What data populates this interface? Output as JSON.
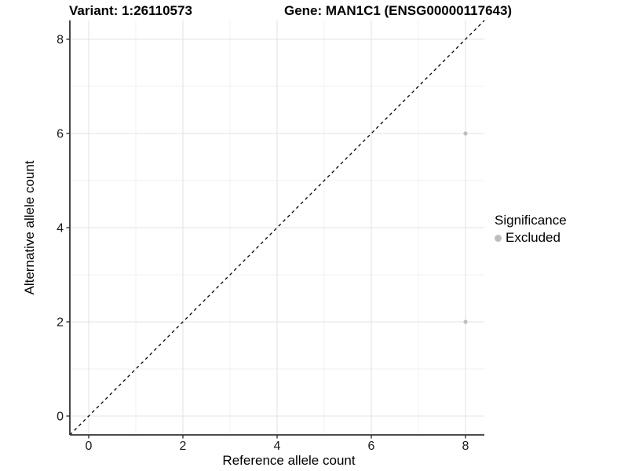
{
  "chart_data": {
    "type": "scatter",
    "title_left": "Variant: 1:26110573",
    "title_right": "Gene: MAN1C1 (ENSG00000117643)",
    "xlabel": "Reference allele count",
    "ylabel": "Alternative allele count",
    "xlim": [
      -0.4,
      8.4
    ],
    "ylim": [
      -0.4,
      8.4
    ],
    "x_ticks": [
      0,
      2,
      4,
      6,
      8
    ],
    "y_ticks": [
      0,
      2,
      4,
      6,
      8
    ],
    "x_tick_labels": [
      "0",
      "2",
      "4",
      "6",
      "8"
    ],
    "y_tick_labels": [
      "0",
      "2",
      "4",
      "6",
      "8"
    ],
    "x_minor_ticks": [
      1,
      3,
      5,
      7
    ],
    "y_minor_ticks": [
      1,
      3,
      5,
      7
    ],
    "grid": true,
    "legend_position": "right",
    "reference_line": {
      "type": "identity-diagonal",
      "style": "dashed",
      "from": [
        -0.4,
        -0.4
      ],
      "to": [
        8.4,
        8.4
      ],
      "color": "#000000"
    },
    "series": [
      {
        "name": "Excluded",
        "color": "#bebebe",
        "points": [
          {
            "x": 8,
            "y": 6
          },
          {
            "x": 8,
            "y": 2
          }
        ]
      }
    ],
    "legend": {
      "title": "Significance",
      "items": [
        {
          "label": "Excluded",
          "color": "#bebebe",
          "marker": "circle"
        }
      ]
    },
    "colors": {
      "background": "#ffffff",
      "grid_major": "#e3e3e3",
      "grid_minor": "#f0f0f0",
      "axis": "#333333",
      "tick_label": "#1a1a1a",
      "point": "#bebebe"
    }
  }
}
